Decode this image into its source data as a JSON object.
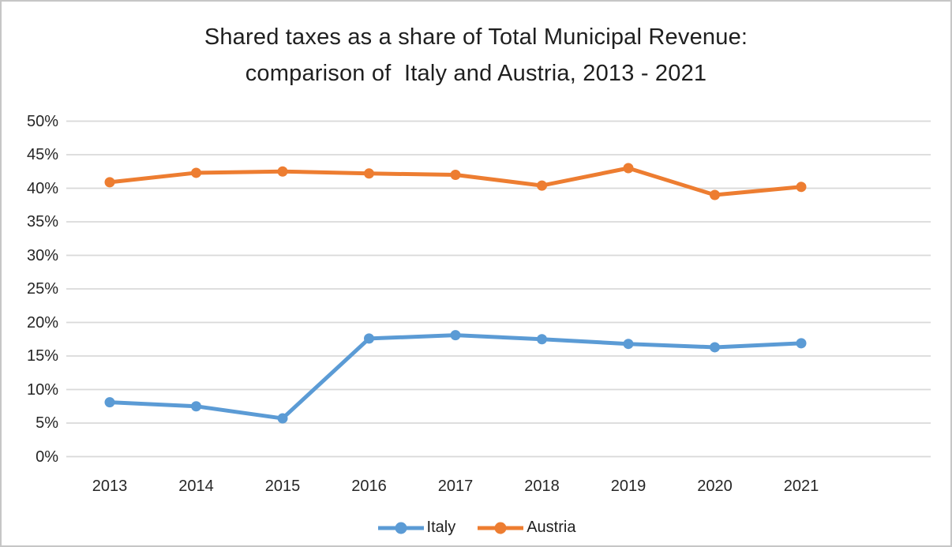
{
  "title": {
    "line1": "Shared taxes as a share of Total Municipal Revenue:",
    "line2": "comparison of  Italy and Austria, 2013 - 2021"
  },
  "chart_data": {
    "type": "line",
    "categories": [
      "2013",
      "2014",
      "2015",
      "2016",
      "2017",
      "2018",
      "2019",
      "2020",
      "2021"
    ],
    "series": [
      {
        "name": "Italy",
        "color": "#5B9BD5",
        "values": [
          8.1,
          7.5,
          5.7,
          17.6,
          18.1,
          17.5,
          16.8,
          16.3,
          16.9
        ]
      },
      {
        "name": "Austria",
        "color": "#ED7D31",
        "values": [
          40.9,
          42.3,
          42.5,
          42.2,
          42.0,
          40.4,
          43.0,
          39.0,
          40.2
        ]
      }
    ],
    "title": "Shared taxes as a share of Total Municipal Revenue: comparison of Italy and Austria, 2013 - 2021",
    "xlabel": "",
    "ylabel": "",
    "ylim": [
      0,
      50
    ],
    "ytick_step": 5,
    "ytick_labels": [
      "0%",
      "5%",
      "10%",
      "15%",
      "20%",
      "25%",
      "30%",
      "35%",
      "40%",
      "45%",
      "50%"
    ],
    "grid": true,
    "grid_color": "#D9D9D9",
    "legend_position": "bottom"
  },
  "colors": {
    "italy": "#5B9BD5",
    "austria": "#ED7D31",
    "gridline": "#D9D9D9",
    "text": "#262626",
    "frame_border": "#c6c6c6"
  }
}
